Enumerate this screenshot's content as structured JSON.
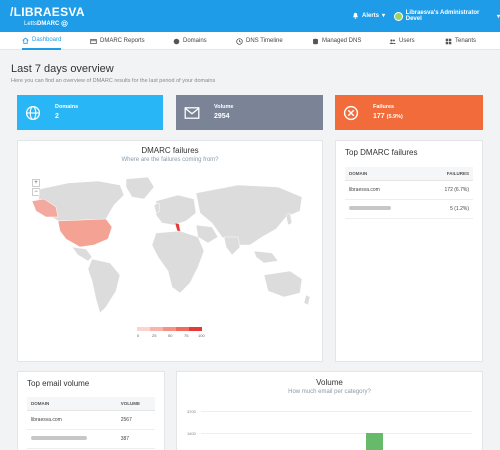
{
  "brand": {
    "name": "/LIBRAESVA",
    "product_prefix": "Letts",
    "product": "DMARC"
  },
  "header": {
    "alerts_label": "Alerts",
    "user_label": "Libraesva's Administrator Devel"
  },
  "nav": {
    "items": [
      {
        "label": "Dashboard",
        "icon": "home-icon",
        "active": true
      },
      {
        "label": "DMARC Reports",
        "icon": "card-icon"
      },
      {
        "label": "Domains",
        "icon": "globe-icon"
      },
      {
        "label": "DNS Timeline",
        "icon": "clock-icon"
      },
      {
        "label": "Managed DNS",
        "icon": "database-icon"
      },
      {
        "label": "Users",
        "icon": "users-icon"
      },
      {
        "label": "Tenants",
        "icon": "grid-icon"
      }
    ]
  },
  "page": {
    "title": "Last 7 days overview",
    "subtitle": "Here you can find an overview of DMARC results for the last period of your domains"
  },
  "stats": [
    {
      "label": "Domains",
      "value": "2",
      "icon": "globe-icon",
      "color": "#29b6f6"
    },
    {
      "label": "Volume",
      "value": "2954",
      "icon": "envelope-icon",
      "color": "#7b8496"
    },
    {
      "label": "Failures",
      "value": "177",
      "extra": "(5.9%)",
      "icon": "times-circle-icon",
      "color": "#f26b3a"
    }
  ],
  "failures_map": {
    "title": "DMARC failures",
    "subtitle": "Where are the failures coming from?",
    "zoom_in": "+",
    "zoom_out": "−",
    "legend": [
      "0",
      "25",
      "50",
      "75",
      "100"
    ],
    "legend_colors": [
      "#fcd4cf",
      "#f9b3aa",
      "#f59185",
      "#ef6b5e",
      "#e53935"
    ]
  },
  "top_failures": {
    "title": "Top DMARC failures",
    "col_domain": "DOMAIN",
    "col_failures": "FAILURES",
    "rows": [
      {
        "domain": "libraesva.com",
        "failures": "172 (6.7%)"
      },
      {
        "domain": "",
        "failures": "5 (1.2%)"
      }
    ]
  },
  "top_volume": {
    "title": "Top email volume",
    "col_domain": "DOMAIN",
    "col_volume": "VOLUME",
    "rows": [
      {
        "domain": "libraesva.com",
        "volume": "2567"
      },
      {
        "domain": "",
        "volume": "387"
      }
    ]
  },
  "volume_chart": {
    "title": "Volume",
    "subtitle": "How much email per category?",
    "tick_labels": [
      "3200",
      "1600"
    ],
    "bar_color": "#66bb6a"
  }
}
